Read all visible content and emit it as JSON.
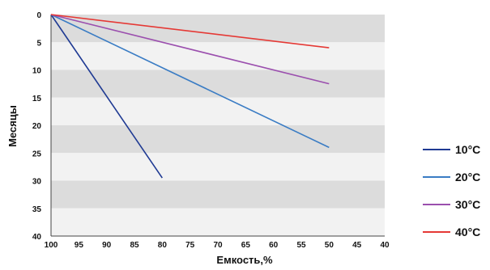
{
  "chart_data": {
    "type": "line",
    "xlabel": "Емкость,%",
    "ylabel": "Месяцы",
    "xlim": [
      100,
      40
    ],
    "ylim": [
      0,
      40
    ],
    "x_ticks": [
      "100",
      "95",
      "90",
      "85",
      "80",
      "75",
      "70",
      "65",
      "60",
      "55",
      "50",
      "45",
      "40"
    ],
    "y_ticks": [
      "0",
      "5",
      "10",
      "15",
      "20",
      "25",
      "30",
      "35",
      "40"
    ],
    "y_inverted": true,
    "grid": "alternating horizontal bands",
    "legend_position": "right",
    "series": [
      {
        "name": "10°C",
        "color": "#1f3a93",
        "points": [
          [
            100,
            0
          ],
          [
            80,
            29.5
          ]
        ]
      },
      {
        "name": "20°C",
        "color": "#3a7cc4",
        "points": [
          [
            100,
            0
          ],
          [
            50,
            24
          ]
        ]
      },
      {
        "name": "30°C",
        "color": "#9b4fae",
        "points": [
          [
            100,
            0
          ],
          [
            50,
            12.5
          ]
        ]
      },
      {
        "name": "40°C",
        "color": "#e53935",
        "points": [
          [
            100,
            0
          ],
          [
            50,
            6
          ]
        ]
      }
    ]
  }
}
